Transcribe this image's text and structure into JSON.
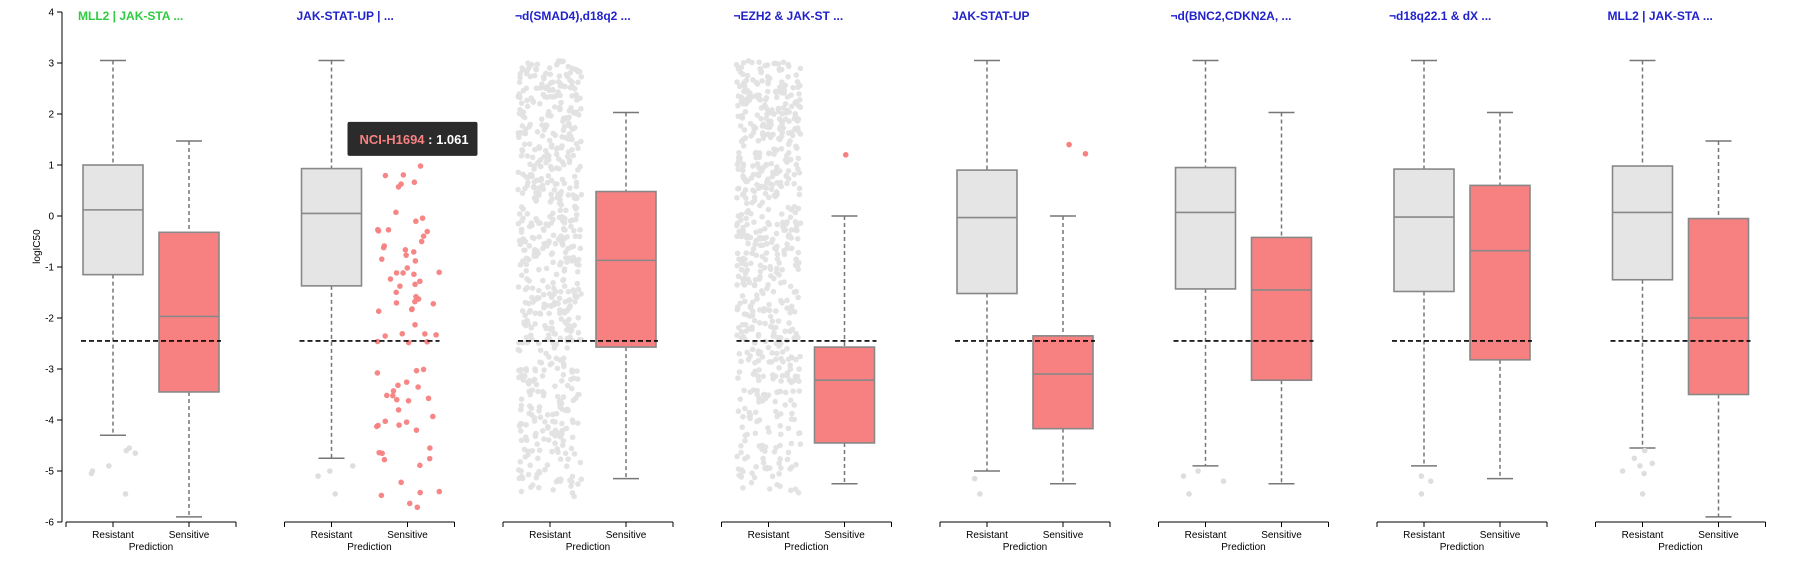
{
  "chart_data": {
    "type": "box",
    "ylabel": "logIC50",
    "xlabel": "Prediction",
    "categories": [
      "Resistant",
      "Sensitive"
    ],
    "ylim": [
      -6,
      4
    ],
    "yticks": [
      4,
      3,
      2,
      1,
      0,
      -1,
      -2,
      -3,
      -4,
      -5,
      -6
    ],
    "threshold": -2.45,
    "colors": {
      "resistant": "#e5e5e5",
      "sensitive": "#f78181",
      "box_stroke": "#888888",
      "title_green": "#2ecc40",
      "title_blue": "#2222cc",
      "tooltip_bg": "#2b2b2b",
      "tooltip_key": "#f78181",
      "tooltip_value": "#ffffff"
    },
    "tooltip": {
      "panel": 1,
      "key": "NCI-H1694",
      "sep": " : ",
      "value": "1.061",
      "x": 1.0,
      "y": 1.061
    },
    "panels": [
      {
        "title": "MLL2 | JAK-STA ...",
        "title_color": "green",
        "resistant": {
          "mode": "box",
          "box": [
            -4.3,
            -1.15,
            0.12,
            1.0,
            3.05
          ],
          "outliers": [
            -4.55,
            -4.6,
            -4.65,
            -4.9,
            -5.0,
            -5.05,
            -5.45
          ]
        },
        "sensitive": {
          "mode": "box",
          "box": [
            -5.9,
            -3.45,
            -1.97,
            -0.32,
            1.47
          ],
          "outliers": []
        }
      },
      {
        "title": "JAK-STAT-UP | ...",
        "title_color": "blue",
        "resistant": {
          "mode": "box",
          "box": [
            -4.75,
            -1.37,
            0.05,
            0.93,
            3.05
          ],
          "outliers": [
            -4.9,
            -5.0,
            -5.1,
            -5.45
          ]
        },
        "sensitive": {
          "mode": "points",
          "count": 80,
          "range": [
            -5.9,
            1.1
          ],
          "seed": 11
        }
      },
      {
        "title": "¬d(SMAD4),d18q2 ...",
        "title_color": "blue",
        "resistant": {
          "mode": "points",
          "count": 650,
          "range": [
            -5.5,
            3.05
          ],
          "seed": 23
        },
        "sensitive": {
          "mode": "box",
          "box": [
            -5.15,
            -2.57,
            -0.87,
            0.48,
            2.03
          ],
          "outliers": []
        }
      },
      {
        "title": "¬EZH2 & JAK-ST ...",
        "title_color": "blue",
        "resistant": {
          "mode": "points",
          "count": 650,
          "range": [
            -5.5,
            3.05
          ],
          "seed": 37
        },
        "sensitive": {
          "mode": "box",
          "box": [
            -5.25,
            -4.45,
            -3.22,
            -2.57,
            0.0
          ],
          "outliers": [
            1.2
          ]
        }
      },
      {
        "title": "JAK-STAT-UP",
        "title_color": "blue",
        "resistant": {
          "mode": "box",
          "box": [
            -5.0,
            -1.52,
            -0.03,
            0.9,
            3.05
          ],
          "outliers": [
            -5.15,
            -5.45
          ]
        },
        "sensitive": {
          "mode": "box",
          "box": [
            -5.25,
            -4.17,
            -3.1,
            -2.35,
            0.0
          ],
          "outliers": [
            1.4,
            1.22
          ]
        }
      },
      {
        "title": "¬d(BNC2,CDKN2A, ...",
        "title_color": "blue",
        "resistant": {
          "mode": "box",
          "box": [
            -4.9,
            -1.43,
            0.07,
            0.95,
            3.05
          ],
          "outliers": [
            -5.0,
            -5.1,
            -5.2,
            -5.45
          ]
        },
        "sensitive": {
          "mode": "box",
          "box": [
            -5.25,
            -3.22,
            -1.45,
            -0.42,
            2.03
          ],
          "outliers": []
        }
      },
      {
        "title": "¬d18q22.1 & dX ...",
        "title_color": "blue",
        "resistant": {
          "mode": "box",
          "box": [
            -4.9,
            -1.48,
            -0.02,
            0.92,
            3.05
          ],
          "outliers": [
            -5.1,
            -5.2,
            -5.45
          ]
        },
        "sensitive": {
          "mode": "box",
          "box": [
            -5.15,
            -2.82,
            -0.68,
            0.6,
            2.03
          ],
          "outliers": []
        }
      },
      {
        "title": "MLL2 | JAK-STA ...",
        "title_color": "blue",
        "resistant": {
          "mode": "box",
          "box": [
            -4.55,
            -1.25,
            0.07,
            0.98,
            3.05
          ],
          "outliers": [
            -4.6,
            -4.75,
            -4.85,
            -4.9,
            -5.0,
            -5.05,
            -5.45
          ]
        },
        "sensitive": {
          "mode": "box",
          "box": [
            -5.9,
            -3.5,
            -2.0,
            -0.05,
            1.47
          ],
          "outliers": []
        }
      }
    ]
  }
}
